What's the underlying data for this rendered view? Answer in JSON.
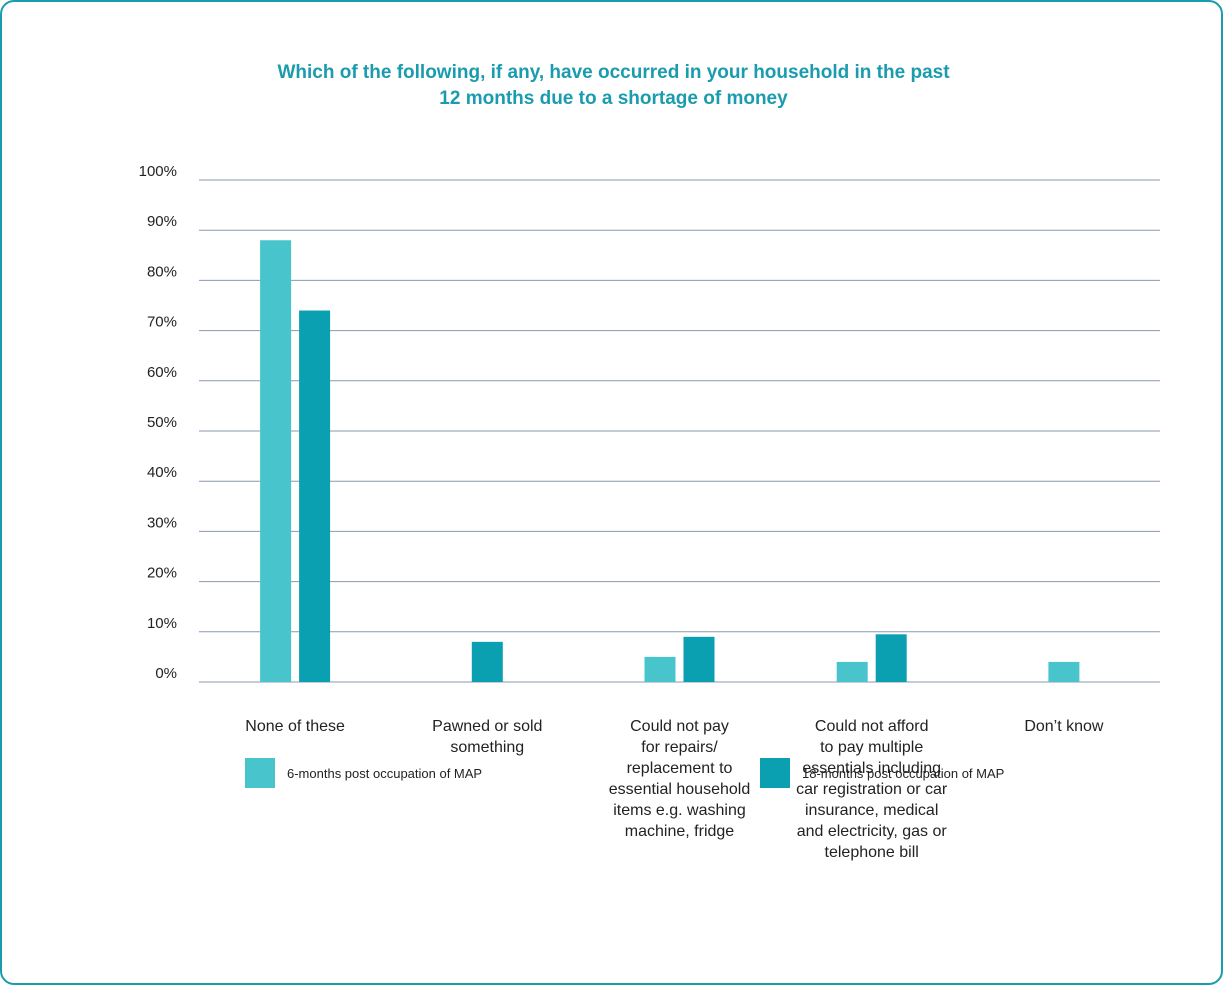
{
  "chart_data": {
    "type": "bar",
    "title": "Which of the following, if any, have occurred in your household in the past 12 months due to a shortage of money",
    "title_lines": [
      "Which of the following, if any, have occurred in your household in the past",
      "12 months due to a shortage of money"
    ],
    "categories": [
      "None of these",
      "Pawned or sold something",
      "Could not pay for repairs/ replacement to essential household items e.g. washing machine, fridge",
      "Could not afford to pay multiple essentials including car registration or car insurance, medical and electricity, gas or telephone bill",
      "Don’t know"
    ],
    "category_lines": [
      [
        "None of these"
      ],
      [
        "Pawned or sold",
        "something"
      ],
      [
        "Could not pay",
        "for repairs/",
        "replacement to",
        "essential household",
        "items e.g. washing",
        "machine, fridge"
      ],
      [
        "Could not afford",
        "to pay multiple",
        "essentials including",
        "car registration or car",
        "insurance, medical",
        "and electricity, gas or",
        "telephone bill"
      ],
      [
        "Don’t know"
      ]
    ],
    "series": [
      {
        "name": "6-months post occupation of MAP",
        "color": "#48c4cd",
        "values": [
          88,
          null,
          5,
          4,
          4
        ]
      },
      {
        "name": "18-months post occupation of MAP",
        "color": "#0ba0b1",
        "values": [
          74,
          8,
          9,
          9.5,
          null
        ]
      }
    ],
    "y_ticks": [
      "0%",
      "10%",
      "20%",
      "30%",
      "40%",
      "50%",
      "60%",
      "70%",
      "80%",
      "90%",
      "100%"
    ],
    "ylim": [
      0,
      100
    ],
    "grid": true,
    "legend_position": "bottom",
    "xlabel": "",
    "ylabel": ""
  }
}
